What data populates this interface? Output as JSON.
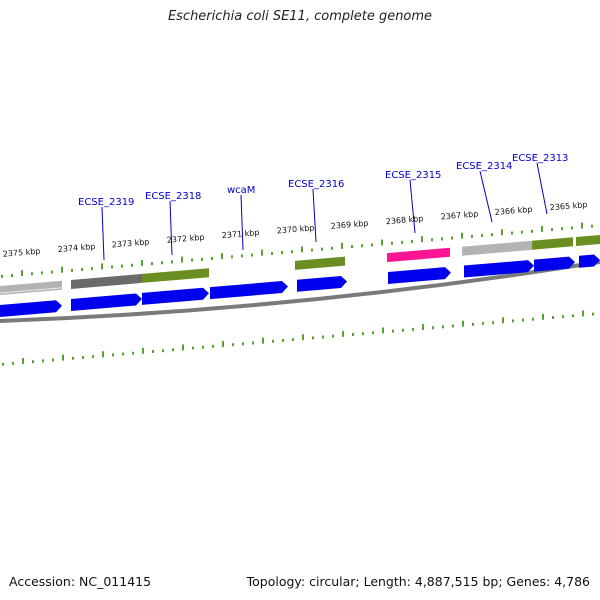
{
  "title": "Escherichia coli SE11, complete genome",
  "accession": "Accession: NC_011415",
  "topology": "Topology: circular; Length: 4,887,515 bp; Genes: 4,786",
  "colors": {
    "cds": "#0000ee",
    "gene_gray": "#b3b3b3",
    "gene_dark": "#6b6b6b",
    "gene_green": "#6b8e23",
    "gene_pink": "#ff1493",
    "backbone": "#7a7a7a",
    "tick": "#2e8b00",
    "label": "#0000cc"
  },
  "kbp_labels": [
    "2375 kbp",
    "2374 kbp",
    "2373 kbp",
    "2372 kbp",
    "2371 kbp",
    "2370 kbp",
    "2369 kbp",
    "2368 kbp",
    "2367 kbp",
    "2366 kbp",
    "2365 kbp"
  ],
  "gene_labels": [
    "ECSE_2319",
    "ECSE_2318",
    "wcaM",
    "ECSE_2316",
    "ECSE_2315",
    "ECSE_2314",
    "ECSE_2313"
  ]
}
